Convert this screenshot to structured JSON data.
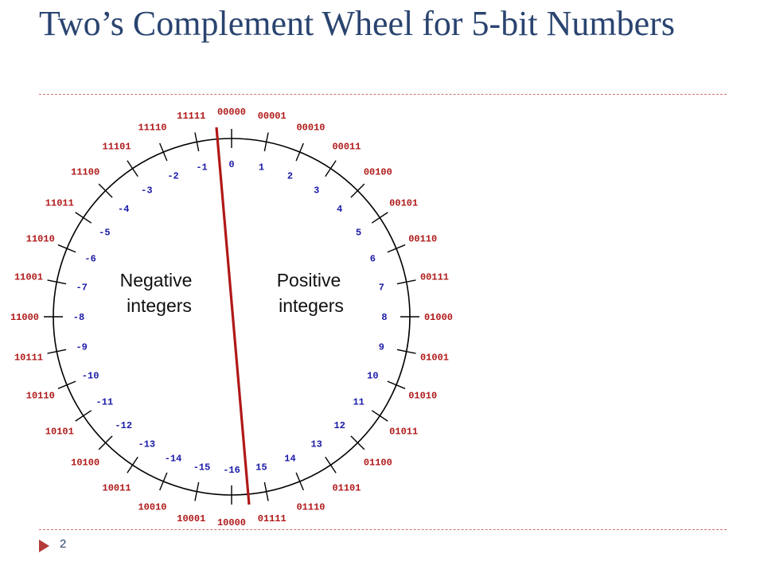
{
  "slide": {
    "title": "Two’s Complement Wheel for 5-bit Numbers",
    "page_number": "2"
  },
  "wheel": {
    "bit_codes": [
      "00000",
      "00001",
      "00010",
      "00011",
      "00100",
      "00101",
      "00110",
      "00111",
      "01000",
      "01001",
      "01010",
      "01011",
      "01100",
      "01101",
      "01110",
      "01111",
      "10000",
      "10001",
      "10010",
      "10011",
      "10100",
      "10101",
      "10110",
      "10111",
      "11000",
      "11001",
      "11010",
      "11011",
      "11100",
      "11101",
      "11110",
      "11111"
    ],
    "values": [
      "0",
      "1",
      "2",
      "3",
      "4",
      "5",
      "6",
      "7",
      "8",
      "9",
      "10",
      "11",
      "12",
      "13",
      "14",
      "15",
      "-16",
      "-15",
      "-14",
      "-13",
      "-12",
      "-11",
      "-10",
      "-9",
      "-8",
      "-7",
      "-6",
      "-5",
      "-4",
      "-3",
      "-2",
      "-1"
    ],
    "negative_label": [
      "Negative",
      "integers"
    ],
    "positive_label": [
      "Positive",
      "integers"
    ]
  },
  "colors": {
    "title": "#2a4470",
    "bit_code": "#b01818",
    "value": "#1a1aa8",
    "divider": "#b01818",
    "rule": "#d07070",
    "bullet": "#b53a3a"
  },
  "icons": {
    "footer_bullet": "red-triangle-bullet-icon"
  }
}
